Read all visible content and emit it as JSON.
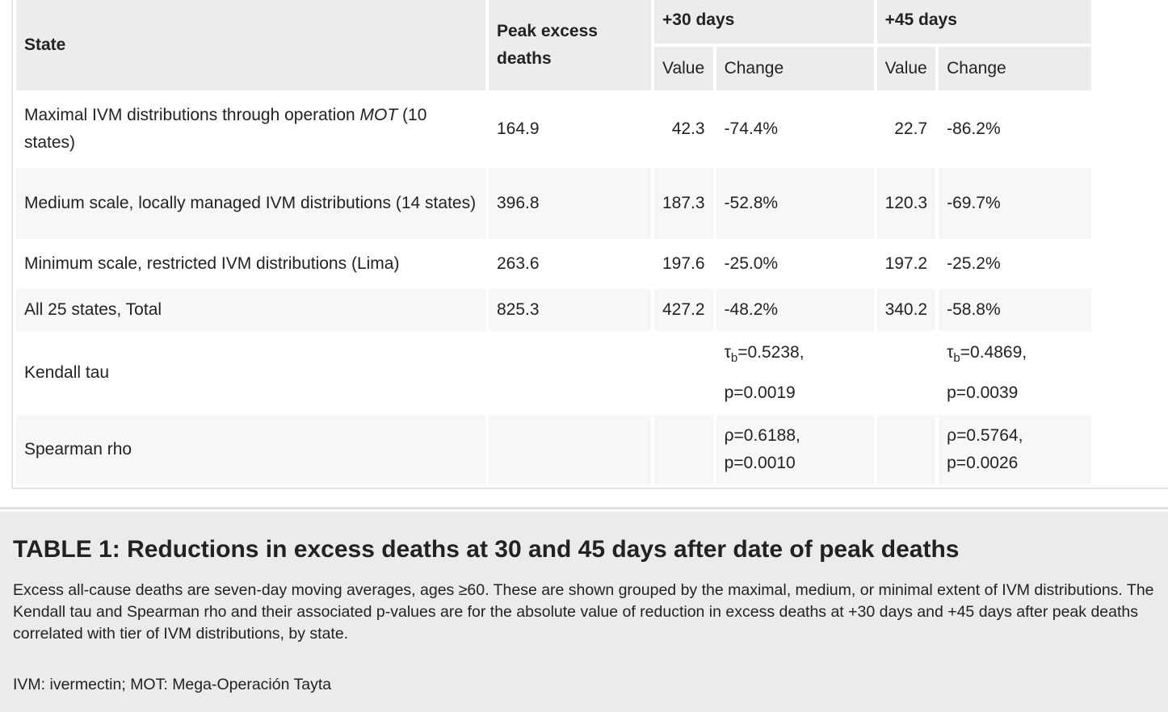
{
  "table": {
    "headers": {
      "state": "State",
      "peak": "Peak excess deaths",
      "group30": "+30 days",
      "group45": "+45 days",
      "value": "Value",
      "change": "Change"
    },
    "rows": [
      {
        "state_pre": "Maximal IVM distributions through operation ",
        "state_italic": "MOT",
        "state_post": " (10 states)",
        "peak": "164.9",
        "v30": "42.3",
        "c30": "-74.4%",
        "v45": "22.7",
        "c45": "-86.2%"
      },
      {
        "state": "Medium scale, locally managed IVM distributions (14 states)",
        "peak": "396.8",
        "v30": "187.3",
        "c30": "-52.8%",
        "v45": "120.3",
        "c45": "-69.7%"
      },
      {
        "state": "Minimum scale, restricted IVM distributions (Lima)",
        "peak": "263.6",
        "v30": "197.6",
        "c30": "-25.0%",
        "v45": "197.2",
        "c45": "-25.2%"
      },
      {
        "state": "All 25 states, Total",
        "peak": "825.3",
        "v30": "427.2",
        "c30": "-48.2%",
        "v45": "340.2",
        "c45": "-58.8%"
      }
    ],
    "kendall": {
      "label": "Kendall tau",
      "sym": "τ",
      "sub": "b",
      "s30_val": "=0.5238,",
      "s30_p": "p=0.0019",
      "s45_val": "=0.4869,",
      "s45_p": "p=0.0039"
    },
    "spearman": {
      "label": "Spearman rho",
      "s30_val": "ρ=0.6188,",
      "s30_p": "p=0.0010",
      "s45_val": "ρ=0.5764,",
      "s45_p": "p=0.0026"
    }
  },
  "caption": {
    "title": "TABLE 1: Reductions in excess deaths at 30 and 45 days after date of peak deaths",
    "body": "Excess all-cause deaths are seven-day moving averages, ages ≥60. These are shown grouped by the maximal, medium, or minimal extent of IVM distributions. The Kendall tau and Spearman rho and their associated p-values are for the absolute value of reduction in excess deaths at +30 days and +45 days after peak deaths correlated with tier of IVM distributions, by state.",
    "abbreviations": "IVM: ivermectin; MOT: Mega-Operación Tayta"
  }
}
